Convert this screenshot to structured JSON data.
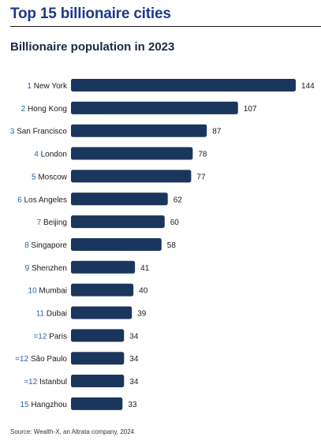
{
  "title": "Top 15 billionaire cities",
  "subtitle": "Billionaire population in 2023",
  "source": "Source: Wealth-X, an Altrata company, 2024",
  "colors": {
    "bar": "#1b365d",
    "rank": "#2c5fb3",
    "city": "#1a1a1a",
    "value": "#1a1a1a",
    "title": "#1d3a8a"
  },
  "chart_data": {
    "type": "bar",
    "orientation": "horizontal",
    "title": "Billionaire population in 2023",
    "xlabel": "",
    "ylabel": "",
    "xlim": [
      0,
      144
    ],
    "grid": false,
    "categories": [
      {
        "rank": "1",
        "city": "New York"
      },
      {
        "rank": "2",
        "city": "Hong Kong"
      },
      {
        "rank": "3",
        "city": "San Francisco"
      },
      {
        "rank": "4",
        "city": "London"
      },
      {
        "rank": "5",
        "city": "Moscow"
      },
      {
        "rank": "6",
        "city": "Los Angeles"
      },
      {
        "rank": "7",
        "city": "Beijing"
      },
      {
        "rank": "8",
        "city": "Singapore"
      },
      {
        "rank": "9",
        "city": "Shenzhen"
      },
      {
        "rank": "10",
        "city": "Mumbai"
      },
      {
        "rank": "11",
        "city": "Dubai"
      },
      {
        "rank": "=12",
        "city": "Paris"
      },
      {
        "rank": "=12",
        "city": "São Paulo"
      },
      {
        "rank": "=12",
        "city": "Istanbul"
      },
      {
        "rank": "15",
        "city": "Hangzhou"
      }
    ],
    "values": [
      144,
      107,
      87,
      78,
      77,
      62,
      60,
      58,
      41,
      40,
      39,
      34,
      34,
      34,
      33
    ]
  }
}
